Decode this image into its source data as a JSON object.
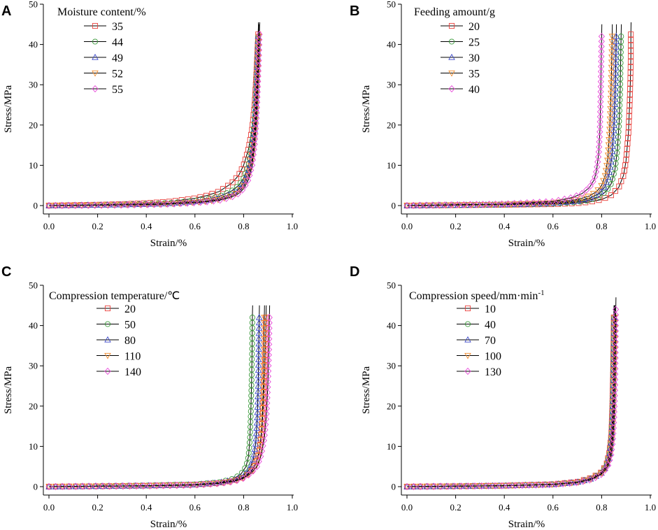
{
  "figure": {
    "panels": [
      {
        "letter": "A",
        "legend_title": "Moisture content/%",
        "xlabel": "Strain/%",
        "ylabel": "Stress/MPa"
      },
      {
        "letter": "B",
        "legend_title": "Feeding amount/g",
        "xlabel": "Strain/%",
        "ylabel": "Stress/MPa"
      },
      {
        "letter": "C",
        "legend_title": "Compression temperature/℃",
        "xlabel": "Strain/%",
        "ylabel": "Stress/MPa"
      },
      {
        "letter": "D",
        "legend_title": "Compression speed/mm·min",
        "legend_title_sup": "-1",
        "xlabel": "Strain/%",
        "ylabel": "Stress/MPa"
      }
    ]
  },
  "chart_data": [
    {
      "type": "line",
      "title": "A",
      "legend_title": "Moisture content/%",
      "xlabel": "Strain/%",
      "ylabel": "Stress/MPa",
      "xlim": [
        0,
        1.0
      ],
      "ylim": [
        0,
        50
      ],
      "xticks": [
        "0.0",
        "0.2",
        "0.4",
        "0.6",
        "0.8",
        "1.0"
      ],
      "yticks": [
        "0",
        "10",
        "20",
        "30",
        "40",
        "50"
      ],
      "series": [
        {
          "name": "35",
          "color": "#e8413c",
          "marker": "square",
          "x": [
            0.0,
            0.1,
            0.2,
            0.3,
            0.4,
            0.5,
            0.6,
            0.65,
            0.7,
            0.75,
            0.78,
            0.8,
            0.82,
            0.835,
            0.845,
            0.85,
            0.855,
            0.858,
            0.86
          ],
          "y": [
            0.0,
            0.1,
            0.2,
            0.35,
            0.6,
            1.0,
            1.8,
            2.5,
            3.5,
            5.5,
            7.5,
            10.0,
            14.0,
            19.0,
            25.0,
            30.0,
            36.0,
            40.0,
            42.5
          ]
        },
        {
          "name": "44",
          "color": "#3a9a3a",
          "marker": "circle",
          "x": [
            0.0,
            0.1,
            0.2,
            0.3,
            0.4,
            0.5,
            0.6,
            0.65,
            0.7,
            0.75,
            0.78,
            0.8,
            0.82,
            0.835,
            0.845,
            0.85,
            0.855,
            0.858,
            0.86
          ],
          "y": [
            0.0,
            0.08,
            0.15,
            0.25,
            0.4,
            0.65,
            1.2,
            1.6,
            2.3,
            3.6,
            5.0,
            6.8,
            10.0,
            15.0,
            21.0,
            27.0,
            33.0,
            38.0,
            42.0
          ]
        },
        {
          "name": "49",
          "color": "#3b47c8",
          "marker": "triangle-up",
          "x": [
            0.0,
            0.1,
            0.2,
            0.3,
            0.4,
            0.5,
            0.6,
            0.65,
            0.7,
            0.75,
            0.78,
            0.8,
            0.82,
            0.835,
            0.845,
            0.85,
            0.855,
            0.858,
            0.86
          ],
          "y": [
            0.0,
            0.06,
            0.12,
            0.2,
            0.32,
            0.5,
            0.9,
            1.2,
            1.8,
            2.8,
            4.0,
            5.5,
            8.5,
            13.0,
            19.0,
            25.0,
            32.0,
            37.0,
            42.0
          ]
        },
        {
          "name": "52",
          "color": "#f08a2a",
          "marker": "triangle-down",
          "x": [
            0.0,
            0.1,
            0.2,
            0.3,
            0.4,
            0.5,
            0.6,
            0.65,
            0.7,
            0.75,
            0.78,
            0.8,
            0.82,
            0.835,
            0.845,
            0.852,
            0.857,
            0.86,
            0.862
          ],
          "y": [
            0.0,
            0.05,
            0.1,
            0.18,
            0.28,
            0.45,
            0.8,
            1.05,
            1.5,
            2.4,
            3.4,
            4.8,
            7.5,
            11.5,
            17.0,
            24.0,
            31.0,
            37.0,
            42.0
          ]
        },
        {
          "name": "55",
          "color": "#e84ad8",
          "marker": "diamond",
          "x": [
            0.0,
            0.1,
            0.2,
            0.3,
            0.4,
            0.5,
            0.6,
            0.65,
            0.7,
            0.75,
            0.78,
            0.8,
            0.82,
            0.835,
            0.845,
            0.853,
            0.858,
            0.862,
            0.865
          ],
          "y": [
            0.0,
            0.04,
            0.08,
            0.15,
            0.24,
            0.38,
            0.7,
            0.95,
            1.3,
            2.1,
            3.0,
            4.2,
            6.5,
            10.0,
            15.0,
            22.0,
            30.0,
            36.0,
            42.5
          ]
        }
      ]
    },
    {
      "type": "line",
      "title": "B",
      "legend_title": "Feeding amount/g",
      "xlabel": "Strain/%",
      "ylabel": "Stress/MPa",
      "xlim": [
        0,
        1.0
      ],
      "ylim": [
        0,
        50
      ],
      "xticks": [
        "0.0",
        "0.2",
        "0.4",
        "0.6",
        "0.8",
        "1.0"
      ],
      "yticks": [
        "0",
        "10",
        "20",
        "30",
        "40",
        "50"
      ],
      "series": [
        {
          "name": "20",
          "color": "#e8413c",
          "marker": "square",
          "x": [
            0.0,
            0.2,
            0.4,
            0.6,
            0.7,
            0.75,
            0.8,
            0.84,
            0.87,
            0.89,
            0.9,
            0.91,
            0.915,
            0.918,
            0.92,
            0.92
          ],
          "y": [
            0.0,
            0.1,
            0.2,
            0.35,
            0.6,
            0.9,
            1.5,
            2.6,
            4.5,
            7.5,
            11.0,
            18.0,
            25.0,
            31.0,
            37.0,
            42.5
          ]
        },
        {
          "name": "25",
          "color": "#3a9a3a",
          "marker": "circle",
          "x": [
            0.0,
            0.2,
            0.4,
            0.6,
            0.7,
            0.75,
            0.79,
            0.82,
            0.84,
            0.855,
            0.865,
            0.872,
            0.876,
            0.878,
            0.88
          ],
          "y": [
            0.0,
            0.1,
            0.2,
            0.45,
            0.85,
            1.3,
            2.2,
            3.6,
            5.5,
            9.0,
            14.0,
            21.0,
            28.0,
            35.0,
            42.0
          ]
        },
        {
          "name": "30",
          "color": "#3b47c8",
          "marker": "triangle-up",
          "x": [
            0.0,
            0.2,
            0.4,
            0.6,
            0.7,
            0.75,
            0.79,
            0.815,
            0.83,
            0.842,
            0.85,
            0.855,
            0.858,
            0.86
          ],
          "y": [
            0.0,
            0.12,
            0.25,
            0.55,
            1.1,
            1.8,
            3.0,
            4.8,
            7.5,
            12.0,
            19.0,
            27.0,
            35.0,
            42.0
          ]
        },
        {
          "name": "35",
          "color": "#f08a2a",
          "marker": "triangle-down",
          "x": [
            0.0,
            0.2,
            0.4,
            0.6,
            0.7,
            0.75,
            0.78,
            0.8,
            0.815,
            0.826,
            0.833,
            0.838,
            0.841,
            0.843
          ],
          "y": [
            0.0,
            0.15,
            0.3,
            0.7,
            1.5,
            2.4,
            3.5,
            5.0,
            7.5,
            12.0,
            19.0,
            27.0,
            35.0,
            42.0
          ]
        },
        {
          "name": "40",
          "color": "#e84ad8",
          "marker": "diamond",
          "x": [
            0.0,
            0.2,
            0.4,
            0.6,
            0.68,
            0.72,
            0.75,
            0.77,
            0.78,
            0.788,
            0.793,
            0.796,
            0.798,
            0.8
          ],
          "y": [
            0.0,
            0.2,
            0.4,
            1.0,
            2.0,
            3.0,
            4.5,
            6.5,
            9.0,
            13.0,
            19.0,
            27.0,
            35.0,
            42.0
          ]
        }
      ]
    },
    {
      "type": "line",
      "title": "C",
      "legend_title": "Compression temperature/℃",
      "xlabel": "Strain/%",
      "ylabel": "Stress/MPa",
      "xlim": [
        0,
        1.0
      ],
      "ylim": [
        0,
        50
      ],
      "xticks": [
        "0.0",
        "0.2",
        "0.4",
        "0.6",
        "0.8",
        "1.0"
      ],
      "yticks": [
        "0",
        "10",
        "20",
        "30",
        "40",
        "50"
      ],
      "series": [
        {
          "name": "20",
          "color": "#e8413c",
          "marker": "square",
          "x": [
            0.0,
            0.2,
            0.4,
            0.6,
            0.7,
            0.76,
            0.8,
            0.83,
            0.85,
            0.865,
            0.875,
            0.882,
            0.887,
            0.89,
            0.892
          ],
          "y": [
            0.0,
            0.1,
            0.25,
            0.5,
            0.9,
            1.5,
            2.4,
            3.8,
            5.8,
            9.0,
            14.0,
            21.0,
            29.0,
            36.0,
            42.0
          ]
        },
        {
          "name": "50",
          "color": "#3a9a3a",
          "marker": "circle",
          "x": [
            0.0,
            0.2,
            0.4,
            0.6,
            0.7,
            0.76,
            0.79,
            0.81,
            0.82,
            0.826,
            0.83,
            0.833,
            0.835,
            0.836
          ],
          "y": [
            0.0,
            0.1,
            0.25,
            0.55,
            1.1,
            2.0,
            3.2,
            5.0,
            7.5,
            12.0,
            19.0,
            27.0,
            35.0,
            42.0
          ]
        },
        {
          "name": "80",
          "color": "#3b47c8",
          "marker": "triangle-up",
          "x": [
            0.0,
            0.2,
            0.4,
            0.6,
            0.7,
            0.76,
            0.8,
            0.825,
            0.84,
            0.85,
            0.856,
            0.86,
            0.862,
            0.864
          ],
          "y": [
            0.0,
            0.1,
            0.25,
            0.5,
            1.0,
            1.7,
            2.8,
            4.4,
            6.8,
            11.0,
            17.0,
            25.0,
            34.0,
            42.0
          ]
        },
        {
          "name": "110",
          "color": "#f08a2a",
          "marker": "triangle-down",
          "x": [
            0.0,
            0.2,
            0.4,
            0.6,
            0.7,
            0.76,
            0.8,
            0.83,
            0.852,
            0.866,
            0.875,
            0.88,
            0.883,
            0.885
          ],
          "y": [
            0.0,
            0.1,
            0.22,
            0.45,
            0.85,
            1.4,
            2.3,
            3.6,
            5.6,
            9.0,
            15.0,
            23.0,
            32.0,
            42.0
          ]
        },
        {
          "name": "140",
          "color": "#e84ad8",
          "marker": "diamond",
          "x": [
            0.0,
            0.2,
            0.4,
            0.6,
            0.7,
            0.76,
            0.8,
            0.83,
            0.855,
            0.872,
            0.885,
            0.894,
            0.9,
            0.904,
            0.906
          ],
          "y": [
            0.0,
            0.1,
            0.2,
            0.4,
            0.8,
            1.3,
            2.1,
            3.3,
            5.0,
            7.8,
            12.0,
            18.0,
            26.0,
            34.0,
            42.0
          ]
        }
      ]
    },
    {
      "type": "line",
      "title": "D",
      "legend_title": "Compression speed/mm·min-1",
      "xlabel": "Strain/%",
      "ylabel": "Stress/MPa",
      "xlim": [
        0,
        1.0
      ],
      "ylim": [
        0,
        50
      ],
      "xticks": [
        "0.0",
        "0.2",
        "0.4",
        "0.6",
        "0.8",
        "1.0"
      ],
      "yticks": [
        "0",
        "10",
        "20",
        "30",
        "40",
        "50"
      ],
      "series": [
        {
          "name": "10",
          "color": "#e8413c",
          "marker": "square",
          "x": [
            0.0,
            0.2,
            0.4,
            0.6,
            0.7,
            0.76,
            0.8,
            0.82,
            0.832,
            0.84,
            0.844,
            0.847,
            0.849,
            0.85
          ],
          "y": [
            0.0,
            0.1,
            0.25,
            0.6,
            1.2,
            2.2,
            3.6,
            5.5,
            8.5,
            13.0,
            20.0,
            28.0,
            36.0,
            42.0
          ]
        },
        {
          "name": "40",
          "color": "#3a9a3a",
          "marker": "circle",
          "x": [
            0.0,
            0.2,
            0.4,
            0.6,
            0.7,
            0.76,
            0.8,
            0.82,
            0.833,
            0.841,
            0.845,
            0.848,
            0.85,
            0.851
          ],
          "y": [
            0.0,
            0.1,
            0.25,
            0.6,
            1.1,
            2.1,
            3.5,
            5.3,
            8.2,
            12.5,
            19.0,
            27.0,
            35.0,
            42.0
          ]
        },
        {
          "name": "70",
          "color": "#3b47c8",
          "marker": "triangle-up",
          "x": [
            0.0,
            0.2,
            0.4,
            0.6,
            0.7,
            0.76,
            0.8,
            0.82,
            0.833,
            0.842,
            0.846,
            0.849,
            0.851,
            0.852
          ],
          "y": [
            0.0,
            0.1,
            0.25,
            0.55,
            1.1,
            2.0,
            3.4,
            5.2,
            8.0,
            12.5,
            19.0,
            27.0,
            35.0,
            42.0
          ]
        },
        {
          "name": "100",
          "color": "#f08a2a",
          "marker": "triangle-down",
          "x": [
            0.0,
            0.2,
            0.4,
            0.6,
            0.7,
            0.76,
            0.8,
            0.822,
            0.835,
            0.843,
            0.848,
            0.851,
            0.853,
            0.854
          ],
          "y": [
            0.0,
            0.1,
            0.25,
            0.55,
            1.05,
            1.9,
            3.3,
            5.0,
            7.8,
            12.0,
            18.0,
            26.0,
            34.0,
            42.0
          ]
        },
        {
          "name": "130",
          "color": "#e84ad8",
          "marker": "diamond",
          "x": [
            0.0,
            0.2,
            0.4,
            0.6,
            0.7,
            0.76,
            0.8,
            0.824,
            0.838,
            0.846,
            0.851,
            0.855,
            0.857,
            0.858
          ],
          "y": [
            0.0,
            0.1,
            0.24,
            0.5,
            1.0,
            1.8,
            3.1,
            4.8,
            7.5,
            11.5,
            17.0,
            25.0,
            34.0,
            44.0
          ]
        }
      ]
    }
  ]
}
